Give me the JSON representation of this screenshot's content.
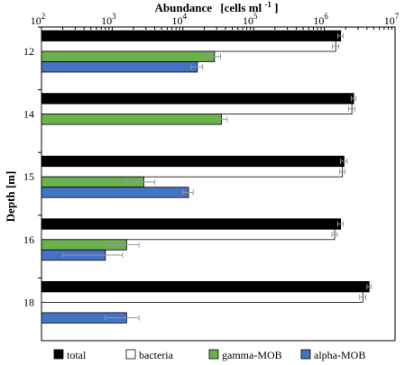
{
  "chart_data": {
    "type": "bar",
    "orientation": "horizontal",
    "title": "Abundance",
    "title_unit_base": "[cells ml",
    "title_unit_sup": "-1",
    "title_unit_close": "]",
    "ylabel": "Depth [m]",
    "xscale": "log",
    "xlim": [
      100,
      10000000
    ],
    "x_ticks": [
      {
        "base": "10",
        "exp": "2"
      },
      {
        "base": "10",
        "exp": "3"
      },
      {
        "base": "10",
        "exp": "4"
      },
      {
        "base": "10",
        "exp": "5"
      },
      {
        "base": "10",
        "exp": "6"
      },
      {
        "base": "10",
        "exp": "7"
      }
    ],
    "x_axis_position": "top",
    "grid": false,
    "legend_position": "bottom",
    "error_bars": true,
    "categories": [
      "12",
      "14",
      "15",
      "16",
      "18"
    ],
    "series": [
      {
        "name": "total",
        "color": "#000000",
        "values": [
          1700000,
          2600000,
          1900000,
          1700000,
          4300000
        ],
        "errors": [
          150000,
          200000,
          200000,
          150000,
          300000
        ]
      },
      {
        "name": "bacteria",
        "color": "#ffffff",
        "values": [
          1450000,
          2450000,
          1800000,
          1400000,
          3500000
        ],
        "errors": [
          150000,
          250000,
          150000,
          120000,
          350000
        ]
      },
      {
        "name": "gamma-MOB",
        "color": "#6ab04c",
        "values": [
          28000,
          35000,
          2800,
          1600,
          null
        ],
        "errors": [
          6000,
          7000,
          1200,
          800,
          null
        ]
      },
      {
        "name": "alpha-MOB",
        "color": "#4472c4",
        "values": [
          16000,
          null,
          12000,
          800,
          1600
        ],
        "errors": [
          3000,
          null,
          2000,
          600,
          800
        ]
      }
    ]
  }
}
